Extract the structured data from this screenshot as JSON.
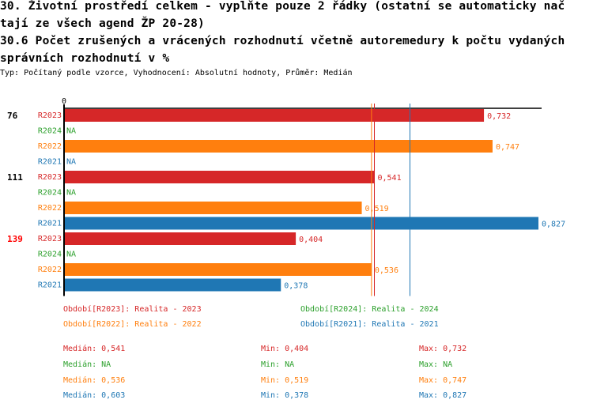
{
  "header": {
    "title_line1": "30. Životní prostředí celkem - vyplňte pouze 2 řádky (ostatní se automaticky nač",
    "title_line2": "tají ze všech agend ŽP 20-28)",
    "title_line3": "30.6 Počet zrušených a vrácených rozhodnutí včetně autoremedury k počtu vydaných",
    "title_line4": "správních rozhodnutí v %",
    "subtitle": "Typ: Počítaný podle vzorce, Vyhodnocení: Absolutní hodnoty, Průměr: Medián"
  },
  "colors": {
    "R2023": "#d62728",
    "R2024": "#2ca02c",
    "R2022": "#ff7f0e",
    "R2021": "#1f77b4",
    "highlight_group": "#ff0000",
    "axis": "#000000"
  },
  "chart_data": {
    "type": "bar",
    "orientation": "horizontal",
    "x_tick_labels": [
      "0"
    ],
    "xlim": [
      0,
      0.827
    ],
    "groups": [
      {
        "label": "76",
        "highlight": false,
        "bars": [
          {
            "series": "R2023",
            "value": 0.732,
            "text": "0,732"
          },
          {
            "series": "R2024",
            "value": null,
            "text": "NA"
          },
          {
            "series": "R2022",
            "value": 0.747,
            "text": "0,747"
          },
          {
            "series": "R2021",
            "value": null,
            "text": "NA"
          }
        ]
      },
      {
        "label": "111",
        "highlight": false,
        "bars": [
          {
            "series": "R2023",
            "value": 0.541,
            "text": "0,541"
          },
          {
            "series": "R2024",
            "value": null,
            "text": "NA"
          },
          {
            "series": "R2022",
            "value": 0.519,
            "text": "0,519"
          },
          {
            "series": "R2021",
            "value": 0.827,
            "text": "0,827"
          }
        ]
      },
      {
        "label": "139",
        "highlight": true,
        "bars": [
          {
            "series": "R2023",
            "value": 0.404,
            "text": "0,404"
          },
          {
            "series": "R2024",
            "value": null,
            "text": "NA"
          },
          {
            "series": "R2022",
            "value": 0.536,
            "text": "0,536"
          },
          {
            "series": "R2021",
            "value": 0.378,
            "text": "0,378"
          }
        ]
      }
    ],
    "median_lines": [
      {
        "series": "R2022",
        "value": 0.536
      },
      {
        "series": "R2023",
        "value": 0.541
      },
      {
        "series": "R2021",
        "value": 0.603
      }
    ]
  },
  "legend": {
    "periods": [
      {
        "series": "R2023",
        "text": "Období[R2023]: Realita - 2023"
      },
      {
        "series": "R2024",
        "text": "Období[R2024]: Realita - 2024"
      },
      {
        "series": "R2022",
        "text": "Období[R2022]: Realita - 2022"
      },
      {
        "series": "R2021",
        "text": "Období[R2021]: Realita - 2021"
      }
    ],
    "stats": [
      {
        "series": "R2023",
        "median": "Medián: 0,541",
        "min": "Min: 0,404",
        "max": "Max: 0,732"
      },
      {
        "series": "R2024",
        "median": "Medián: NA",
        "min": "Min: NA",
        "max": "Max: NA"
      },
      {
        "series": "R2022",
        "median": "Medián: 0,536",
        "min": "Min: 0,519",
        "max": "Max: 0,747"
      },
      {
        "series": "R2021",
        "median": "Medián: 0,603",
        "min": "Min: 0,378",
        "max": "Max: 0,827"
      }
    ]
  }
}
